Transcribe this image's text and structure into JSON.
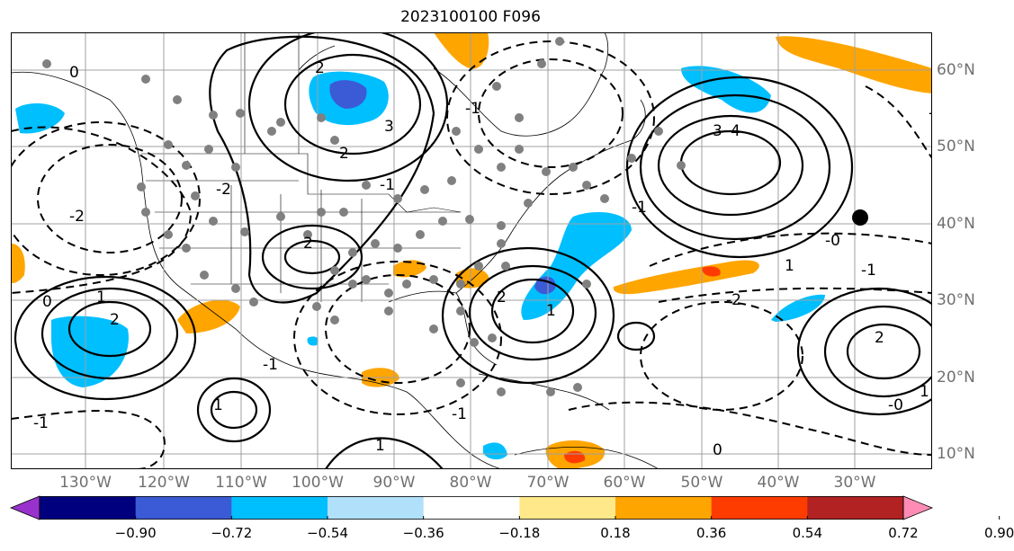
{
  "title": "2023100100 F096",
  "map": {
    "longitude_labels": [
      "130°W",
      "120°W",
      "110°W",
      "100°W",
      "90°W",
      "80°W",
      "70°W",
      "60°W",
      "50°W",
      "40°W",
      "30°W"
    ],
    "latitude_labels": [
      "60°N",
      "50°N",
      "40°N",
      "30°N",
      "20°N",
      "10°N"
    ],
    "contour_labels": {
      "positive": [
        "2",
        "3",
        "4",
        "3",
        "2",
        "1",
        "2",
        "2",
        "2",
        "1",
        "1",
        "1",
        "1",
        "0",
        "1",
        "2"
      ],
      "negative": [
        "0",
        "-2",
        "-1",
        "-1",
        "-1",
        "-2",
        "-1",
        "-1",
        "-1",
        "-0",
        "-0",
        "-2",
        "-1",
        "-1",
        "0"
      ]
    }
  },
  "colorbar": {
    "tick_labels": [
      "−0.90",
      "−0.72",
      "−0.54",
      "−0.36",
      "−0.18",
      "0.18",
      "0.36",
      "0.54",
      "0.72",
      "0.90"
    ],
    "colors": [
      "#9932cc",
      "#00007f",
      "#3b5bd6",
      "#00bfff",
      "#b0e0fa",
      "#ffffff",
      "#ffe88a",
      "#ffa500",
      "#ff3c00",
      "#b22222",
      "#ff8cb4"
    ]
  }
}
